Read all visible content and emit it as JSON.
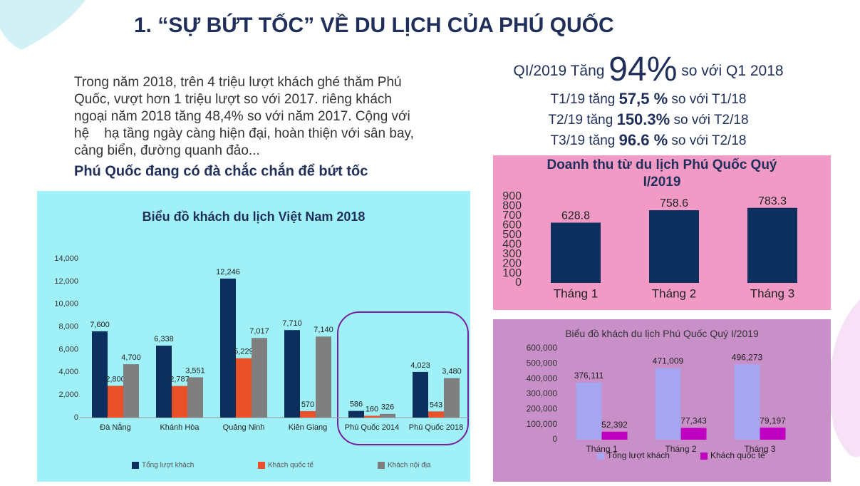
{
  "title": "1. “SỰ BỨT TỐC” VỀ DU LỊCH CỦA PHÚ QUỐC",
  "intro": {
    "lines": [
      "Trong năm 2018, trên 4 triệu lượt khách ghé thăm Phú",
      "Quốc, vượt hơn 1 triệu lượt so với 2017. riêng khách",
      "ngoại năm 2018 tăng 48,4% so với năm 2017. Cộng với",
      "hệ    hạ tầng ngày càng hiện đại, hoàn thiện với sân bay,",
      "cảng biển, đường quanh đảo..."
    ],
    "highlight": "Phú Quốc đang có đà chắc chắn để bứt tốc"
  },
  "growth": {
    "headline": {
      "prefix": "QI/2019 Tăng",
      "value": "94%",
      "suffix": "so với Q1 2018"
    },
    "rows": [
      {
        "prefix": "T1/19 tăng",
        "value": "57,5 %",
        "suffix": "so với T1/18"
      },
      {
        "prefix": "T2/19 tăng",
        "value": "150.3%",
        "suffix": "so với T2/18"
      },
      {
        "prefix": "T3/19 tăng",
        "value": "96.6 %",
        "suffix": "so với T2/18"
      }
    ]
  },
  "chart_data": [
    {
      "type": "bar",
      "title": "Biểu đồ khách du lịch Việt Nam 2018",
      "background": "#a0f0f8",
      "categories": [
        "Đà Nẵng",
        "Khánh Hòa",
        "Quảng Ninh",
        "Kiên Giang",
        "Phú Quốc 2014",
        "Phú Quốc 2018"
      ],
      "series": [
        {
          "name": "Tổng lượt khách",
          "color": "#0d2f5e",
          "values": [
            7600,
            6338,
            12246,
            7710,
            586,
            4023
          ],
          "value_labels": [
            "7,600",
            "6,338",
            "12,246",
            "7,710",
            "586",
            "4,023"
          ]
        },
        {
          "name": "Khách quốc tế",
          "color": "#e8512a",
          "values": [
            2800,
            2787,
            5229,
            570,
            160,
            543
          ],
          "value_labels": [
            "2,800",
            "2,787",
            "5,229",
            "570",
            "160",
            "543"
          ]
        },
        {
          "name": "Khách nội địa",
          "color": "#7f7f7f",
          "values": [
            4700,
            3551,
            7017,
            7140,
            326,
            3480
          ],
          "value_labels": [
            "4,700",
            "3,551",
            "7,017",
            "7,140",
            "326",
            "3,480"
          ]
        }
      ],
      "ylim": [
        0,
        14000
      ],
      "yticks": [
        0,
        {
          "value": 2000,
          "label": "2,000"
        },
        {
          "value": 4000,
          "label": "4,000"
        },
        {
          "value": 6000,
          "label": "6,000"
        },
        {
          "value": 8000,
          "label": "8,000"
        },
        {
          "value": 10000,
          "label": "10,000"
        },
        {
          "value": 12000,
          "label": "12,000"
        },
        {
          "value": 14000,
          "label": "14,000"
        }
      ],
      "legend": "bottom"
    },
    {
      "type": "bar",
      "title": "Doanh thu từ du lịch Phú Quốc Quý I/2019",
      "background": "#f19ac6",
      "categories": [
        "Tháng 1",
        "Tháng 2",
        "Tháng 3"
      ],
      "values": [
        628.8,
        758.6,
        783.3
      ],
      "color": "#0d2f5e",
      "ylim": [
        0,
        900
      ],
      "yticks": [
        0,
        100,
        200,
        300,
        400,
        500,
        600,
        700,
        800,
        900
      ]
    },
    {
      "type": "bar",
      "title": "Biểu đồ khách du lịch Phú Quốc Quý I/2019",
      "background": "#c98fc9",
      "categories": [
        "Tháng 1",
        "Tháng 2",
        "Tháng 3"
      ],
      "series": [
        {
          "name": "Tổng lượt khách",
          "color": "#a6a6f0",
          "values": [
            376111,
            471009,
            496273
          ],
          "value_labels": [
            "376,111",
            "471,009",
            "496,273"
          ]
        },
        {
          "name": "Khách quốc tế",
          "color": "#c000c0",
          "values": [
            52392,
            77343,
            79197
          ],
          "value_labels": [
            "52,392",
            "77,343",
            "79,197"
          ]
        }
      ],
      "ylim": [
        0,
        600000
      ],
      "yticks": [
        0,
        {
          "value": 100000,
          "label": "100,000"
        },
        {
          "value": 200000,
          "label": "200,000"
        },
        {
          "value": 300000,
          "label": "300,000"
        },
        {
          "value": 400000,
          "label": "400,000"
        },
        {
          "value": 500000,
          "label": "500,000"
        },
        {
          "value": 600000,
          "label": "600,000"
        }
      ],
      "legend": "bottom"
    }
  ]
}
